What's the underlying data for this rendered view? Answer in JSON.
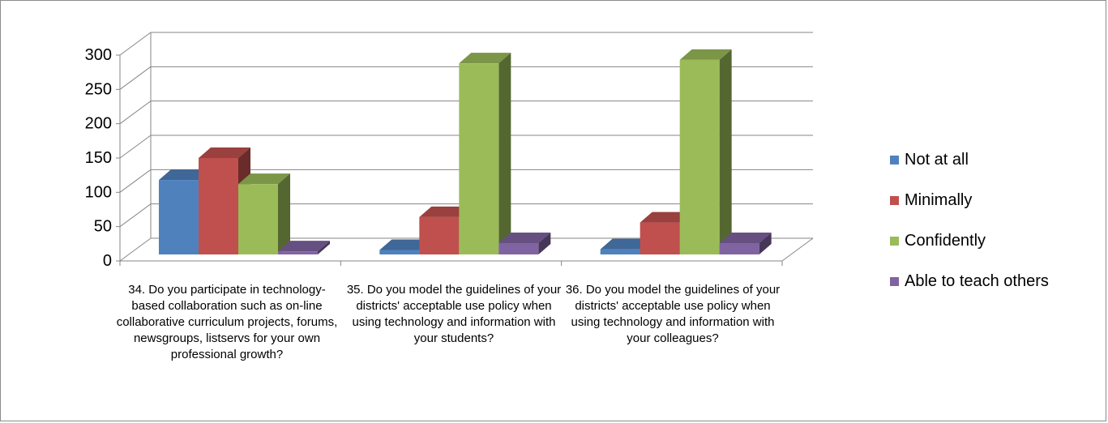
{
  "chart_data": {
    "type": "bar",
    "title": "",
    "xlabel": "",
    "ylabel": "",
    "ylim": [
      0,
      300
    ],
    "yticks": [
      0,
      50,
      100,
      150,
      200,
      250,
      300
    ],
    "categories": [
      "34.  Do you participate in technology-based collaboration such as on-line collaborative curriculum projects, forums, newsgroups, listservs for your own professional growth?",
      "35.   Do you model the guidelines of your districts' acceptable use policy when using technology and information with your students?",
      "36.  Do you model the guidelines of your districts' acceptable use policy when using technology and information with your colleagues?"
    ],
    "series": [
      {
        "name": "Not at all",
        "color": "#4f81bd",
        "values": [
          118,
          16,
          17
        ]
      },
      {
        "name": "Minimally",
        "color": "#c0504d",
        "values": [
          150,
          64,
          56
        ]
      },
      {
        "name": "Confidently",
        "color": "#9bbb59",
        "values": [
          112,
          288,
          293
        ]
      },
      {
        "name": "Able to teach others",
        "color": "#8064a2",
        "values": [
          14,
          26,
          26
        ]
      }
    ],
    "legend_position": "right",
    "grid": true,
    "style": "3d-clustered-column"
  }
}
